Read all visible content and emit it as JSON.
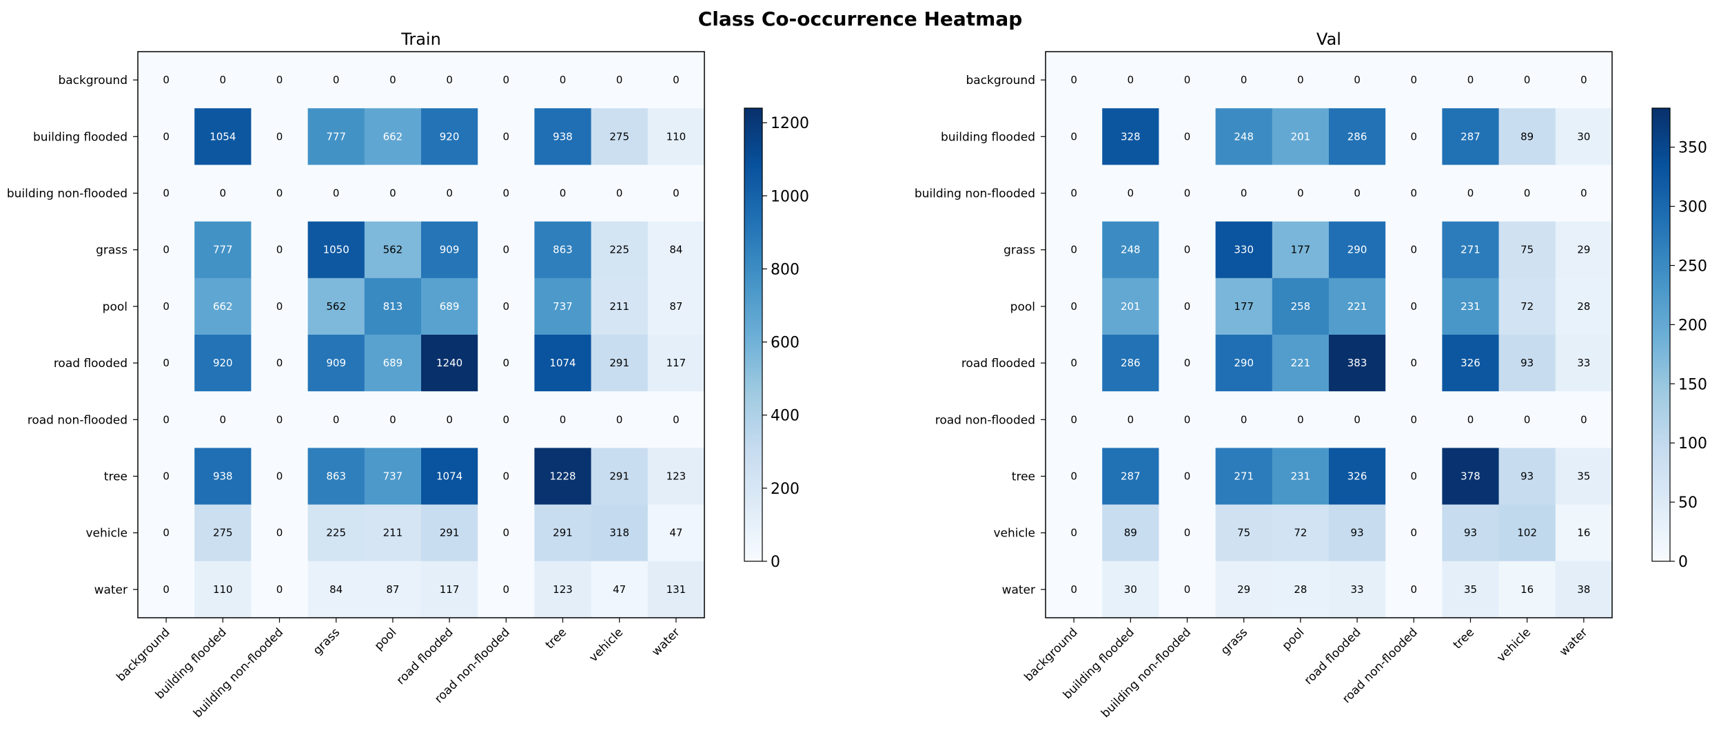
{
  "title": "Class Co-occurrence Heatmap",
  "colormap": {
    "name": "Blues",
    "stops": [
      "#f7fbff",
      "#deebf7",
      "#c6dbef",
      "#9ecae1",
      "#6baed6",
      "#4292c6",
      "#2171b5",
      "#08519c",
      "#08306b"
    ]
  },
  "chart_data": [
    {
      "type": "heatmap",
      "title": "Train",
      "labels": [
        "background",
        "building flooded",
        "building non-flooded",
        "grass",
        "pool",
        "road flooded",
        "road non-flooded",
        "tree",
        "vehicle",
        "water"
      ],
      "matrix": [
        [
          0,
          0,
          0,
          0,
          0,
          0,
          0,
          0,
          0,
          0
        ],
        [
          0,
          1054,
          0,
          777,
          662,
          920,
          0,
          938,
          275,
          110
        ],
        [
          0,
          0,
          0,
          0,
          0,
          0,
          0,
          0,
          0,
          0
        ],
        [
          0,
          777,
          0,
          1050,
          562,
          909,
          0,
          863,
          225,
          84
        ],
        [
          0,
          662,
          0,
          562,
          813,
          689,
          0,
          737,
          211,
          87
        ],
        [
          0,
          920,
          0,
          909,
          689,
          1240,
          0,
          1074,
          291,
          117
        ],
        [
          0,
          0,
          0,
          0,
          0,
          0,
          0,
          0,
          0,
          0
        ],
        [
          0,
          938,
          0,
          863,
          737,
          1074,
          0,
          1228,
          291,
          123
        ],
        [
          0,
          275,
          0,
          225,
          211,
          291,
          0,
          291,
          318,
          47
        ],
        [
          0,
          110,
          0,
          84,
          87,
          117,
          0,
          123,
          47,
          131
        ]
      ],
      "vmin": 0,
      "vmax": 1240,
      "colorbar_ticks": [
        0,
        200,
        400,
        600,
        800,
        1000,
        1200
      ]
    },
    {
      "type": "heatmap",
      "title": "Val",
      "labels": [
        "background",
        "building flooded",
        "building non-flooded",
        "grass",
        "pool",
        "road flooded",
        "road non-flooded",
        "tree",
        "vehicle",
        "water"
      ],
      "matrix": [
        [
          0,
          0,
          0,
          0,
          0,
          0,
          0,
          0,
          0,
          0
        ],
        [
          0,
          328,
          0,
          248,
          201,
          286,
          0,
          287,
          89,
          30
        ],
        [
          0,
          0,
          0,
          0,
          0,
          0,
          0,
          0,
          0,
          0
        ],
        [
          0,
          248,
          0,
          330,
          177,
          290,
          0,
          271,
          75,
          29
        ],
        [
          0,
          201,
          0,
          177,
          258,
          221,
          0,
          231,
          72,
          28
        ],
        [
          0,
          286,
          0,
          290,
          221,
          383,
          0,
          326,
          93,
          33
        ],
        [
          0,
          0,
          0,
          0,
          0,
          0,
          0,
          0,
          0,
          0
        ],
        [
          0,
          287,
          0,
          271,
          231,
          326,
          0,
          378,
          93,
          35
        ],
        [
          0,
          89,
          0,
          75,
          72,
          93,
          0,
          93,
          102,
          16
        ],
        [
          0,
          30,
          0,
          29,
          28,
          33,
          0,
          35,
          16,
          38
        ]
      ],
      "vmin": 0,
      "vmax": 383,
      "colorbar_ticks": [
        0,
        50,
        100,
        150,
        200,
        250,
        300,
        350
      ]
    }
  ]
}
